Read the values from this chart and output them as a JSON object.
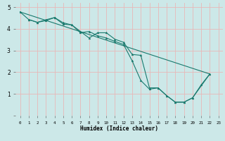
{
  "xlabel": "Humidex (Indice chaleur)",
  "bg_color": "#cce8e8",
  "grid_color": "#e8b8b8",
  "line_color": "#1a7a6e",
  "xlim": [
    -0.5,
    23.5
  ],
  "ylim": [
    0,
    5.2
  ],
  "xtick_labels": [
    "0",
    "1",
    "2",
    "3",
    "4",
    "5",
    "6",
    "7",
    "8",
    "9",
    "10",
    "11",
    "12",
    "13",
    "14",
    "15",
    "16",
    "17",
    "18",
    "19",
    "20",
    "21",
    "2223"
  ],
  "ytick_labels": [
    "",
    "1",
    "2",
    "3",
    "4",
    "5"
  ],
  "series1": [
    [
      0,
      4.78
    ],
    [
      1,
      4.43
    ],
    [
      2,
      4.3
    ],
    [
      3,
      4.42
    ],
    [
      4,
      4.52
    ],
    [
      5,
      4.28
    ],
    [
      6,
      4.18
    ],
    [
      7,
      3.88
    ],
    [
      8,
      3.58
    ],
    [
      9,
      3.82
    ],
    [
      10,
      3.82
    ],
    [
      11,
      3.52
    ],
    [
      12,
      3.38
    ],
    [
      13,
      2.82
    ],
    [
      14,
      2.78
    ],
    [
      15,
      1.28
    ],
    [
      16,
      1.28
    ],
    [
      17,
      0.92
    ],
    [
      18,
      0.62
    ],
    [
      19,
      0.62
    ],
    [
      20,
      0.82
    ],
    [
      22,
      1.92
    ]
  ],
  "series2": [
    [
      1,
      4.43
    ],
    [
      2,
      4.3
    ],
    [
      3,
      4.38
    ],
    [
      4,
      4.52
    ],
    [
      5,
      4.22
    ],
    [
      6,
      4.18
    ],
    [
      7,
      3.82
    ],
    [
      8,
      3.88
    ],
    [
      9,
      3.68
    ],
    [
      10,
      3.58
    ],
    [
      11,
      3.42
    ],
    [
      12,
      3.28
    ],
    [
      13,
      2.52
    ],
    [
      14,
      1.62
    ],
    [
      15,
      1.22
    ],
    [
      16,
      1.28
    ],
    [
      17,
      0.92
    ],
    [
      18,
      0.62
    ],
    [
      19,
      0.62
    ],
    [
      20,
      0.82
    ],
    [
      21,
      1.42
    ],
    [
      22,
      1.92
    ]
  ],
  "series3": [
    [
      0,
      4.78
    ],
    [
      22,
      1.92
    ]
  ]
}
